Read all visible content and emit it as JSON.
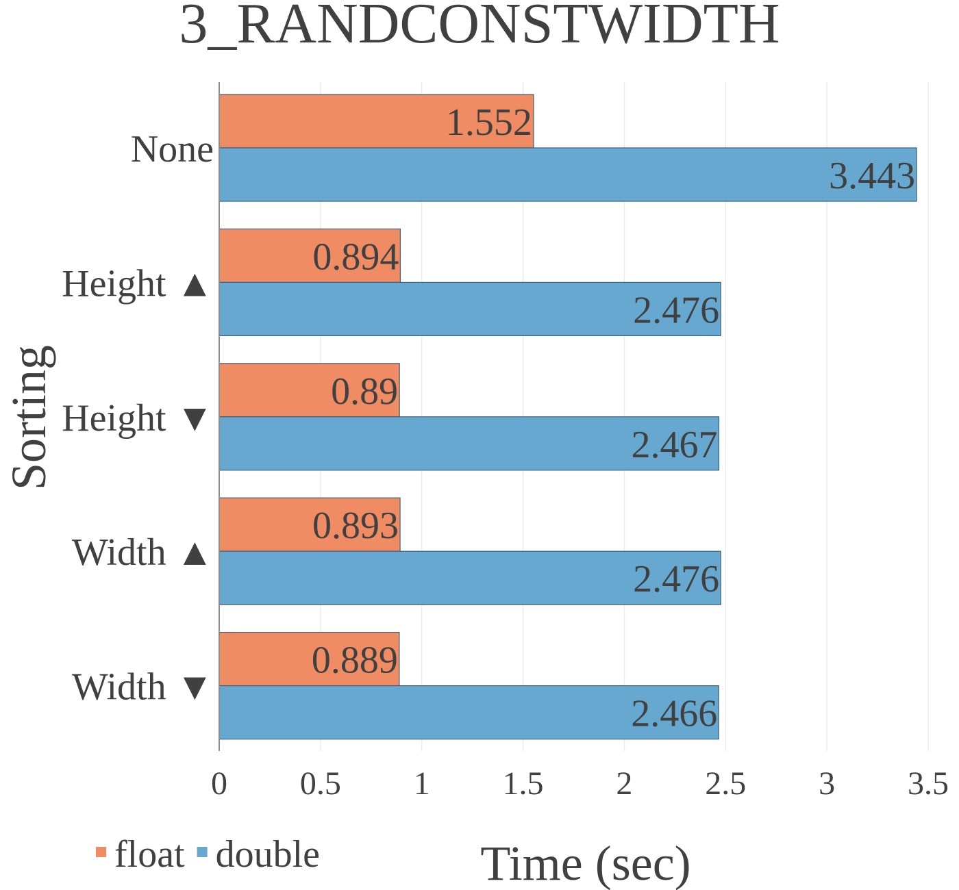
{
  "chart_data": {
    "type": "bar",
    "orientation": "horizontal",
    "title": "3_RANDCONSTWIDTH",
    "xlabel": "Time (sec)",
    "ylabel": "Sorting",
    "categories": [
      "None",
      "Height ▲",
      "Height ▼",
      "Width ▲",
      "Width ▼"
    ],
    "series": [
      {
        "name": "float",
        "color": "#F08C64",
        "values": [
          1.552,
          0.894,
          0.89,
          0.893,
          0.889
        ],
        "labels": [
          "1.552",
          "0.894",
          "0.89",
          "0.893",
          "0.889"
        ]
      },
      {
        "name": "double",
        "color": "#66A8D0",
        "values": [
          3.443,
          2.476,
          2.467,
          2.476,
          2.466
        ],
        "labels": [
          "3.443",
          "2.476",
          "2.467",
          "2.476",
          "2.466"
        ]
      }
    ],
    "xlim": [
      0,
      3.5
    ],
    "xticks": [
      "0",
      "0.5",
      "1",
      "1.5",
      "2",
      "2.5",
      "3",
      "3.5"
    ],
    "grid": true,
    "legend_position": "bottom-left"
  }
}
